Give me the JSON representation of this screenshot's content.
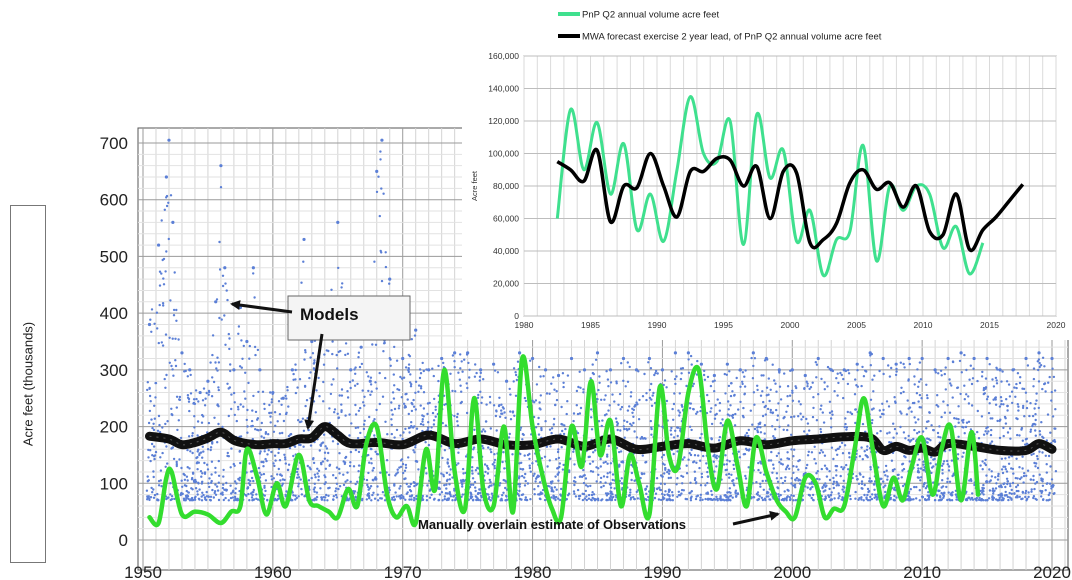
{
  "chart_data": [
    {
      "type": "scatter",
      "title": "",
      "xlabel": "",
      "ylabel": "Acre feet (thousands)",
      "xlim": [
        1950,
        2020
      ],
      "ylim": [
        0,
        700
      ],
      "x_ticks": [
        "1950",
        "1960",
        "1970",
        "1980",
        "1990",
        "2000",
        "2010",
        "2020"
      ],
      "y_ticks": [
        "0",
        "100",
        "200",
        "300",
        "400",
        "500",
        "600",
        "700"
      ],
      "grid": true,
      "annotations": [
        {
          "text": "Models"
        },
        {
          "text": "Manually overlain estimate of Observations"
        }
      ],
      "series": [
        {
          "kind": "scatter-cloud",
          "color": "#5b7fd6",
          "x": [
            1950.5,
            1951.2,
            1951.8,
            1952,
            1952.3,
            1953,
            1953.6,
            1954.4,
            1955,
            1955.6,
            1956,
            1956.3,
            1957,
            1957.5,
            1958,
            1958.5,
            1959,
            1960,
            1960.8,
            1961.5,
            1962,
            1962.4,
            1963,
            1963.7,
            1964.3,
            1965,
            1966,
            1966.8,
            1967.5,
            1968,
            1968.4,
            1969,
            1970,
            1971,
            1972,
            1973,
            1974,
            1975,
            1976,
            1977,
            1978,
            1979,
            1980,
            1981,
            1982,
            1983,
            1984,
            1985,
            1986,
            1987,
            1988,
            1989,
            1990,
            1991,
            1992,
            1993,
            1994,
            1995,
            1996,
            1997,
            1998,
            1999,
            2000,
            2001,
            2002,
            2003,
            2004,
            2005,
            2006,
            2007,
            2008,
            2009,
            2010,
            2011,
            2012,
            2013,
            2014,
            2015,
            2016,
            2017,
            2018,
            2019,
            2020
          ],
          "y": [
            380,
            520,
            640,
            705,
            560,
            330,
            300,
            260,
            280,
            420,
            660,
            480,
            300,
            410,
            350,
            480,
            300,
            260,
            250,
            300,
            400,
            530,
            350,
            380,
            410,
            560,
            300,
            340,
            280,
            650,
            705,
            460,
            320,
            370,
            300,
            320,
            330,
            330,
            300,
            310,
            280,
            330,
            320,
            300,
            290,
            320,
            300,
            330,
            300,
            320,
            300,
            320,
            300,
            330,
            330,
            310,
            290,
            310,
            300,
            330,
            320,
            300,
            300,
            290,
            320,
            300,
            300,
            310,
            330,
            320,
            310,
            320,
            320,
            300,
            320,
            330,
            320,
            320,
            300,
            300,
            320,
            330,
            320
          ]
        },
        {
          "kind": "line",
          "name": "Models",
          "color": "#111111",
          "x": [
            1950.5,
            1952,
            1953,
            1954,
            1955,
            1956,
            1957,
            1958,
            1959,
            1960,
            1961,
            1962,
            1963,
            1964,
            1965,
            1966,
            1968,
            1970,
            1972,
            1974,
            1976,
            1978,
            1980,
            1982,
            1984,
            1986,
            1988,
            1990,
            1992,
            1994,
            1996,
            1998,
            2000,
            2002,
            2004,
            2006,
            2007,
            2008,
            2009,
            2010,
            2011,
            2012,
            2014,
            2016,
            2018,
            2019,
            2020
          ],
          "y": [
            183,
            178,
            168,
            172,
            180,
            190,
            176,
            170,
            168,
            170,
            170,
            178,
            180,
            200,
            185,
            170,
            172,
            168,
            185,
            170,
            178,
            168,
            168,
            178,
            165,
            178,
            160,
            165,
            170,
            162,
            175,
            168,
            175,
            178,
            182,
            180,
            158,
            165,
            158,
            162,
            155,
            170,
            165,
            158,
            158,
            170,
            160
          ]
        },
        {
          "kind": "line",
          "name": "Manually overlain estimate of Observations",
          "color": "#33dd2e",
          "x": [
            1950.5,
            1951.2,
            1951.8,
            1952.2,
            1953,
            1954,
            1955,
            1956,
            1956.8,
            1957.5,
            1958,
            1958.8,
            1959.5,
            1960.3,
            1961,
            1962,
            1962.8,
            1963.5,
            1964.3,
            1965,
            1965.8,
            1966.5,
            1967.2,
            1968,
            1968.8,
            1969.5,
            1970.3,
            1971,
            1971.8,
            1972.5,
            1973.2,
            1974,
            1974.8,
            1975.5,
            1976.2,
            1977,
            1977.8,
            1978.5,
            1979.2,
            1980,
            1980.8,
            1981.5,
            1982.2,
            1983,
            1983.8,
            1984.5,
            1985.2,
            1986,
            1986.8,
            1987.5,
            1988.2,
            1989,
            1989.8,
            1990.5,
            1991.2,
            1992,
            1992.8,
            1993.5,
            1994.2,
            1995,
            1995.8,
            1996.5,
            1997.2,
            1998,
            1998.8,
            1999.5,
            2000.2,
            2001,
            2001.8,
            2002.5,
            2003.2,
            2004,
            2004.8,
            2005.5,
            2006.2,
            2007,
            2007.8,
            2008.5,
            2009.2,
            2010,
            2010.8,
            2011.5,
            2012.2,
            2013,
            2013.8,
            2014.3
          ],
          "y": [
            40,
            30,
            110,
            120,
            45,
            50,
            45,
            30,
            50,
            60,
            160,
            110,
            45,
            100,
            60,
            150,
            70,
            60,
            50,
            40,
            90,
            60,
            170,
            200,
            80,
            40,
            60,
            30,
            160,
            90,
            300,
            120,
            55,
            250,
            90,
            60,
            200,
            50,
            320,
            200,
            110,
            55,
            40,
            200,
            130,
            280,
            150,
            210,
            60,
            150,
            100,
            45,
            270,
            150,
            130,
            260,
            300,
            160,
            90,
            210,
            130,
            60,
            180,
            120,
            70,
            50,
            40,
            110,
            100,
            40,
            55,
            60,
            160,
            250,
            160,
            60,
            110,
            70,
            130,
            180,
            80,
            160,
            200,
            70,
            190,
            80
          ]
        }
      ]
    },
    {
      "type": "line",
      "title": "",
      "xlabel": "",
      "ylabel": "Acre feet",
      "xlim": [
        1980,
        2020
      ],
      "ylim": [
        0,
        160000
      ],
      "x_ticks": [
        "1980",
        "1985",
        "1990",
        "1995",
        "2000",
        "2005",
        "2010",
        "2015",
        "2020"
      ],
      "y_ticks": [
        "0",
        "20,000",
        "40,000",
        "60,000",
        "80,000",
        "100,000",
        "120,000",
        "140,000",
        "160,000"
      ],
      "grid": true,
      "legend_placement": "top",
      "series": [
        {
          "name": "PnP Q2 annual volume acre feet",
          "color": "#3fe08e",
          "x": [
            1982.5,
            1983.5,
            1984.5,
            1985.5,
            1986.5,
            1987.5,
            1988.5,
            1989.5,
            1990.5,
            1991.5,
            1992.5,
            1993.5,
            1994.5,
            1995.5,
            1996.5,
            1997.5,
            1998.5,
            1999.5,
            2000.5,
            2001.5,
            2002.5,
            2003.5,
            2004.5,
            2005.5,
            2006.5,
            2007.5,
            2008.5,
            2009.5,
            2010.5,
            2011.5,
            2012.5,
            2013.5,
            2014.5
          ],
          "y": [
            60000,
            127000,
            90000,
            119000,
            75000,
            106000,
            53000,
            75000,
            46000,
            90000,
            135000,
            100000,
            95000,
            120000,
            44000,
            124000,
            85000,
            102000,
            46000,
            65000,
            25000,
            47000,
            52000,
            105000,
            34000,
            80000,
            65000,
            80000,
            75000,
            42000,
            55000,
            26000,
            45000
          ]
        },
        {
          "name": "MWA forecast exercise 2 year lead, of PnP Q2 annual volume acre feet",
          "color": "#000000",
          "x": [
            1982.5,
            1983.5,
            1984.5,
            1985.5,
            1986.5,
            1987.5,
            1988.5,
            1989.5,
            1990.5,
            1991.5,
            1992.5,
            1993.5,
            1994.5,
            1995.5,
            1996.5,
            1997.5,
            1998.5,
            1999.5,
            2000.5,
            2001.5,
            2002.5,
            2003.5,
            2004.5,
            2005.5,
            2006.5,
            2007.5,
            2008.5,
            2009.5,
            2010.5,
            2011.5,
            2012.5,
            2013.5,
            2014.5,
            2015.5,
            2016.5,
            2017.5
          ],
          "y": [
            95000,
            90000,
            83000,
            102000,
            58000,
            80000,
            79000,
            100000,
            80000,
            61000,
            89000,
            89000,
            97000,
            96000,
            80000,
            92000,
            60000,
            89000,
            88000,
            45000,
            47000,
            57000,
            82000,
            90000,
            78000,
            82000,
            67000,
            80000,
            52000,
            50000,
            75000,
            41000,
            53000,
            61000,
            71000,
            81000
          ]
        }
      ]
    }
  ]
}
